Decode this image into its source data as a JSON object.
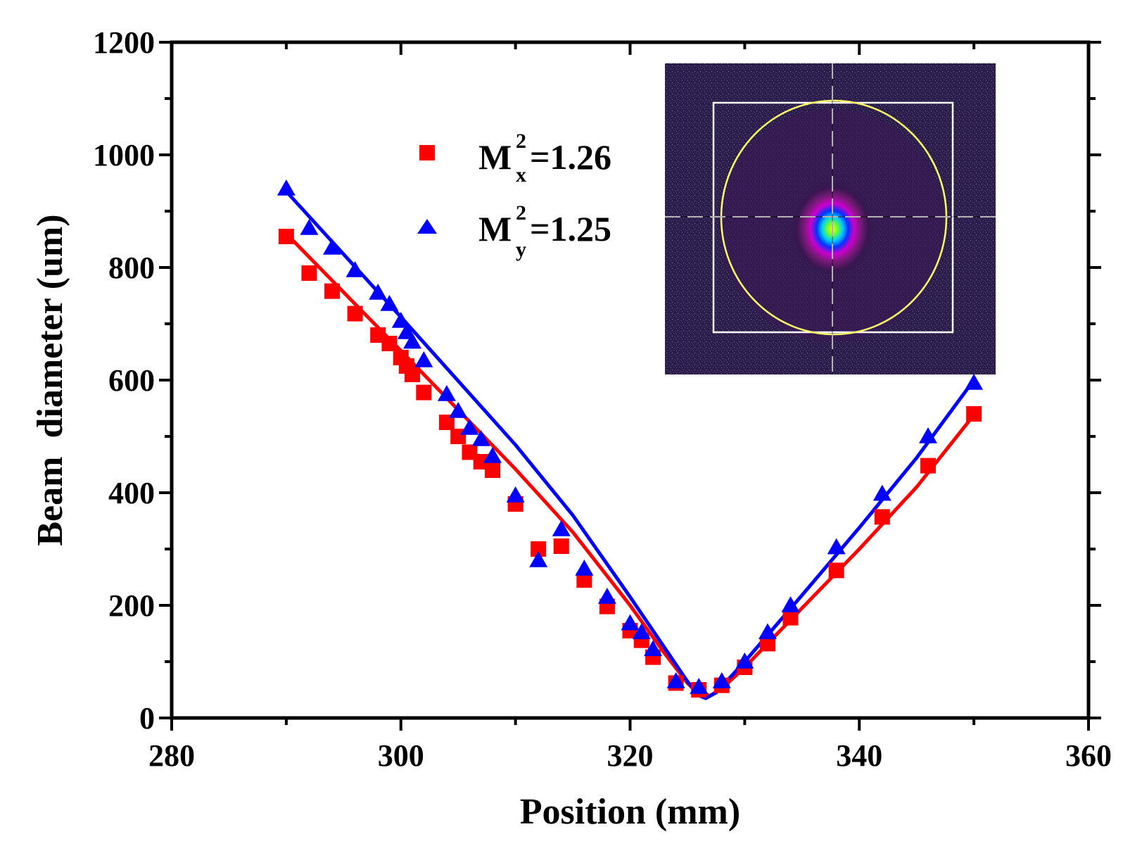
{
  "chart_data": {
    "type": "scatter",
    "title": "",
    "xlabel": "Position (mm)",
    "ylabel": "Beam  diameter (um)",
    "xlim": [
      280,
      360
    ],
    "ylim": [
      0,
      1200
    ],
    "x_ticks": [
      280,
      300,
      320,
      340,
      360
    ],
    "y_ticks": [
      0,
      200,
      400,
      600,
      800,
      1000,
      1200
    ],
    "legend_position": "top-center",
    "series": [
      {
        "name": "M_x^2=1.26",
        "label_main": "M",
        "label_sup": "2",
        "label_sub": "x",
        "label_tail": "=1.26",
        "marker": "square",
        "color": "#ff0000",
        "points": [
          [
            290,
            855
          ],
          [
            292,
            790
          ],
          [
            294,
            758
          ],
          [
            296,
            718
          ],
          [
            298,
            680
          ],
          [
            299,
            665
          ],
          [
            300,
            640
          ],
          [
            300.5,
            625
          ],
          [
            301,
            610
          ],
          [
            302,
            578
          ],
          [
            304,
            525
          ],
          [
            305,
            500
          ],
          [
            306,
            472
          ],
          [
            307,
            455
          ],
          [
            308,
            440
          ],
          [
            310,
            380
          ],
          [
            312,
            300
          ],
          [
            314,
            305
          ],
          [
            316,
            245
          ],
          [
            318,
            198
          ],
          [
            320,
            155
          ],
          [
            321,
            138
          ],
          [
            322,
            108
          ],
          [
            324,
            62
          ],
          [
            326,
            50
          ],
          [
            328,
            58
          ],
          [
            330,
            90
          ],
          [
            332,
            132
          ],
          [
            334,
            178
          ],
          [
            338,
            262
          ],
          [
            342,
            357
          ],
          [
            346,
            448
          ],
          [
            350,
            540
          ]
        ],
        "fit": [
          [
            290,
            860
          ],
          [
            300,
            652
          ],
          [
            310,
            442
          ],
          [
            315,
            330
          ],
          [
            320,
            200
          ],
          [
            323,
            115
          ],
          [
            325,
            62
          ],
          [
            326,
            42
          ],
          [
            327,
            40
          ],
          [
            328,
            52
          ],
          [
            330,
            90
          ],
          [
            335,
            195
          ],
          [
            340,
            300
          ],
          [
            345,
            410
          ],
          [
            350,
            538
          ]
        ]
      },
      {
        "name": "M_y^2=1.25",
        "label_main": "M",
        "label_sup": "2",
        "label_sub": "y",
        "label_tail": "=1.25",
        "marker": "triangle",
        "color": "#0000ff",
        "points": [
          [
            290,
            940
          ],
          [
            292,
            870
          ],
          [
            294,
            835
          ],
          [
            296,
            795
          ],
          [
            298,
            755
          ],
          [
            299,
            735
          ],
          [
            300,
            705
          ],
          [
            300.5,
            685
          ],
          [
            301,
            668
          ],
          [
            302,
            635
          ],
          [
            304,
            575
          ],
          [
            305,
            545
          ],
          [
            306,
            515
          ],
          [
            307,
            495
          ],
          [
            308,
            465
          ],
          [
            310,
            395
          ],
          [
            312,
            280
          ],
          [
            314,
            335
          ],
          [
            316,
            265
          ],
          [
            318,
            215
          ],
          [
            320,
            168
          ],
          [
            321,
            152
          ],
          [
            322,
            122
          ],
          [
            324,
            65
          ],
          [
            326,
            55
          ],
          [
            328,
            65
          ],
          [
            330,
            100
          ],
          [
            332,
            152
          ],
          [
            334,
            200
          ],
          [
            338,
            303
          ],
          [
            342,
            398
          ],
          [
            346,
            500
          ],
          [
            350,
            595
          ]
        ],
        "fit": [
          [
            290,
            935
          ],
          [
            300,
            712
          ],
          [
            310,
            485
          ],
          [
            315,
            360
          ],
          [
            320,
            215
          ],
          [
            323,
            125
          ],
          [
            325,
            65
          ],
          [
            326,
            40
          ],
          [
            326.6,
            35
          ],
          [
            327.5,
            45
          ],
          [
            330,
            100
          ],
          [
            335,
            218
          ],
          [
            340,
            338
          ],
          [
            345,
            462
          ],
          [
            350,
            600
          ]
        ]
      }
    ],
    "inset": {
      "type": "beam-profile-image",
      "colors": {
        "background": "#2a1d4a",
        "box": "#ffffff",
        "ellipse": "#ffff66",
        "crosshair": "#ffffff"
      }
    }
  }
}
